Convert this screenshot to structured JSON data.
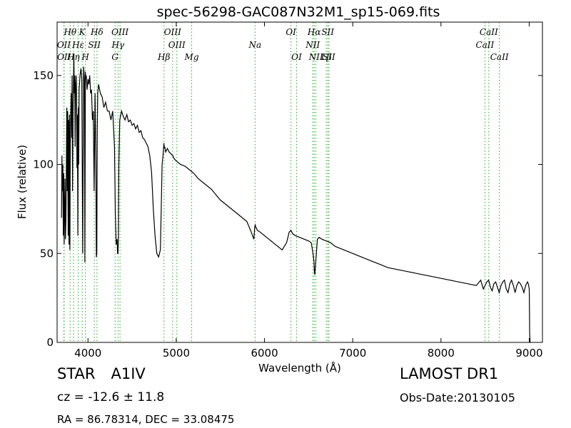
{
  "chart_data": {
    "type": "line",
    "title": "spec-56298-GAC087N32M1_sp15-069.fits",
    "xlabel": "Wavelength (Å)",
    "ylabel": "Flux (relative)",
    "xlim": [
      3650,
      9150
    ],
    "ylim": [
      0,
      180
    ],
    "xticks": [
      4000,
      5000,
      6000,
      7000,
      8000,
      9000
    ],
    "yticks": [
      0,
      50,
      100,
      150
    ],
    "grid": false,
    "line_color": "#000000",
    "marker_color": "#2ca02c",
    "series": [
      {
        "x": [
          3700,
          3705,
          3710,
          3715,
          3720,
          3725,
          3730,
          3735,
          3740,
          3745,
          3750,
          3755,
          3760,
          3765,
          3770,
          3775,
          3780,
          3785,
          3790,
          3795,
          3800,
          3805,
          3810,
          3815,
          3820,
          3825,
          3830,
          3835,
          3840,
          3845,
          3850,
          3855,
          3860,
          3865,
          3870,
          3875,
          3880,
          3885,
          3890,
          3895,
          3900,
          3910,
          3920,
          3930,
          3940,
          3950,
          3960,
          3965,
          3970,
          3975,
          3980,
          3990,
          4000,
          4010,
          4020,
          4030,
          4040,
          4050,
          4060,
          4070,
          4080,
          4090,
          4095,
          4100,
          4105,
          4110,
          4120,
          4140,
          4160,
          4180,
          4200,
          4220,
          4240,
          4260,
          4280,
          4300,
          4310,
          4320,
          4330,
          4335,
          4340,
          4345,
          4350,
          4360,
          4380,
          4400,
          4420,
          4440,
          4460,
          4480,
          4500,
          4520,
          4540,
          4560,
          4580,
          4600,
          4620,
          4640,
          4660,
          4680,
          4700,
          4720,
          4740,
          4760,
          4780,
          4800,
          4820,
          4830,
          4840,
          4850,
          4855,
          4860,
          4865,
          4870,
          4880,
          4890,
          4900,
          4920,
          4940,
          4960,
          4980,
          5000,
          5050,
          5100,
          5150,
          5200,
          5250,
          5300,
          5350,
          5400,
          5450,
          5500,
          5550,
          5600,
          5650,
          5700,
          5750,
          5800,
          5850,
          5880,
          5890,
          5895,
          5900,
          5920,
          5950,
          6000,
          6050,
          6100,
          6150,
          6200,
          6250,
          6280,
          6300,
          6320,
          6350,
          6400,
          6450,
          6500,
          6530,
          6550,
          6560,
          6565,
          6570,
          6580,
          6600,
          6620,
          6650,
          6700,
          6750,
          6800,
          6850,
          6900,
          6950,
          7000,
          7100,
          7200,
          7300,
          7400,
          7500,
          7600,
          7700,
          7800,
          7900,
          8000,
          8100,
          8200,
          8300,
          8400,
          8450,
          8480,
          8500,
          8520,
          8540,
          8560,
          8580,
          8600,
          8620,
          8640,
          8660,
          8680,
          8700,
          8720,
          8740,
          8760,
          8780,
          8800,
          8820,
          8840,
          8860,
          8880,
          8900,
          8920,
          8940,
          8960,
          8980,
          8990,
          9000,
          9005,
          9010,
          9020
        ],
        "y": [
          70,
          105,
          85,
          100,
          60,
          95,
          55,
          75,
          92,
          58,
          70,
          100,
          132,
          85,
          130,
          60,
          125,
          55,
          128,
          52,
          112,
          130,
          140,
          115,
          150,
          85,
          130,
          145,
          162,
          140,
          150,
          110,
          145,
          150,
          142,
          98,
          128,
          60,
          132,
          100,
          142,
          150,
          154,
          148,
          50,
          155,
          148,
          45,
          152,
          148,
          150,
          142,
          148,
          145,
          150,
          140,
          142,
          125,
          130,
          85,
          140,
          100,
          48,
          50,
          120,
          140,
          145,
          140,
          138,
          132,
          135,
          130,
          130,
          125,
          130,
          110,
          72,
          55,
          58,
          50,
          50,
          60,
          100,
          125,
          130,
          127,
          125,
          128,
          124,
          125,
          122,
          123,
          120,
          122,
          118,
          119,
          115,
          114,
          112,
          110,
          105,
          96,
          75,
          60,
          50,
          48,
          52,
          75,
          100,
          105,
          108,
          112,
          109,
          110,
          107,
          108,
          109,
          107,
          106,
          105,
          103,
          102,
          100,
          99,
          97,
          95,
          92,
          90,
          88,
          86,
          83,
          80,
          78,
          76,
          74,
          72,
          70,
          68,
          62,
          58,
          65,
          66,
          65,
          63,
          62,
          60,
          58,
          56,
          54,
          52,
          56,
          62,
          63,
          61,
          60,
          59,
          58,
          57,
          56,
          50,
          46,
          40,
          38,
          45,
          58,
          59,
          58,
          57,
          56,
          54,
          53,
          52,
          51,
          50,
          48,
          46,
          44,
          42,
          41,
          40,
          39,
          38,
          37,
          36,
          35,
          34,
          33,
          32,
          35,
          30,
          32,
          34,
          35,
          31,
          29,
          33,
          34,
          31,
          28,
          32,
          34,
          35,
          30,
          28,
          33,
          35,
          32,
          28,
          32,
          34,
          33,
          31,
          28,
          32,
          34,
          33,
          30,
          5,
          0,
          0
        ]
      }
    ],
    "lines_top": [
      {
        "label": "Hθ",
        "x": 3798
      },
      {
        "label": "K",
        "x": 3934
      },
      {
        "label": "Hδ",
        "x": 4102
      },
      {
        "label": "OIII",
        "x": 4363
      },
      {
        "label": "OIII",
        "x": 4959
      },
      {
        "label": "OI",
        "x": 6300
      },
      {
        "label": "Hα",
        "x": 6563
      },
      {
        "label": "SII",
        "x": 6717
      },
      {
        "label": "CaII",
        "x": 8542
      }
    ],
    "lines_mid": [
      {
        "label": "OII",
        "x": 3727
      },
      {
        "label": "Hε",
        "x": 3889
      },
      {
        "label": "SII",
        "x": 4072
      },
      {
        "label": "Hγ",
        "x": 4340
      },
      {
        "label": "OIII",
        "x": 5007
      },
      {
        "label": "Na",
        "x": 5893
      },
      {
        "label": "NII",
        "x": 6548
      },
      {
        "label": "CaII",
        "x": 8498
      }
    ],
    "lines_low": [
      {
        "label": "OII",
        "x": 3729
      },
      {
        "label": "Hη",
        "x": 3835
      },
      {
        "label": "H",
        "x": 3970
      },
      {
        "label": "G",
        "x": 4307
      },
      {
        "label": "Hβ",
        "x": 4861
      },
      {
        "label": "Mg",
        "x": 5175
      },
      {
        "label": "OI",
        "x": 6364
      },
      {
        "label": "NII",
        "x": 6583
      },
      {
        "label": "Lβ",
        "x": 6700
      },
      {
        "label": "SII",
        "x": 6731
      },
      {
        "label": "CaII",
        "x": 8662
      }
    ]
  },
  "object_type": "STAR",
  "subclass": "A1IV",
  "redshift": "cz = -12.6 ± 11.8",
  "coordinates": "RA = 86.78314, DEC = 33.08475",
  "survey": "LAMOST DR1",
  "obs_date": "Obs-Date:20130105"
}
